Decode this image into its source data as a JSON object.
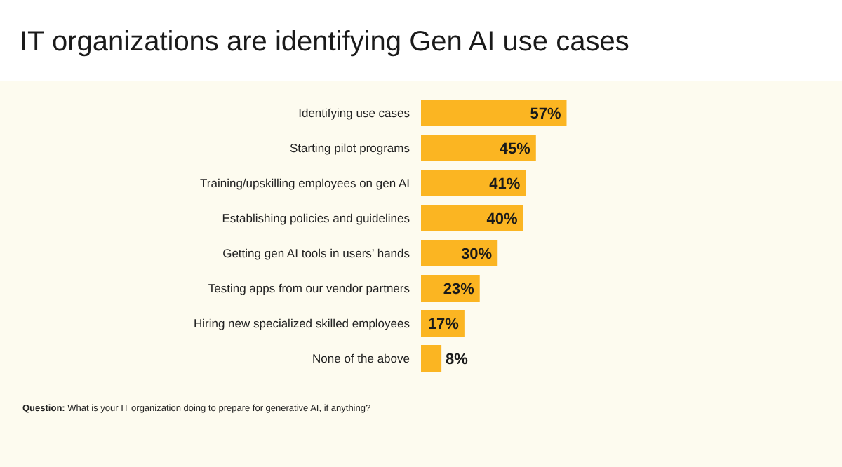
{
  "chart_data": {
    "type": "bar",
    "orientation": "horizontal",
    "title": "IT organizations are identifying Gen AI use cases",
    "categories": [
      "Identifying use cases",
      "Starting pilot programs",
      "Training/upskilling employees on gen AI",
      "Establishing policies and guidelines",
      "Getting gen AI tools in users’ hands",
      "Testing apps from our vendor partners",
      "Hiring new specialized skilled employees",
      "None of the above"
    ],
    "values": [
      57,
      45,
      41,
      40,
      30,
      23,
      17,
      8
    ],
    "value_labels": [
      "57%",
      "45%",
      "41%",
      "40%",
      "30%",
      "23%",
      "17%",
      "8%"
    ],
    "color": "#fbb522",
    "annotations": [
      "Question: What is your IT organization doing to prepare for generative AI, if anything?"
    ]
  }
}
